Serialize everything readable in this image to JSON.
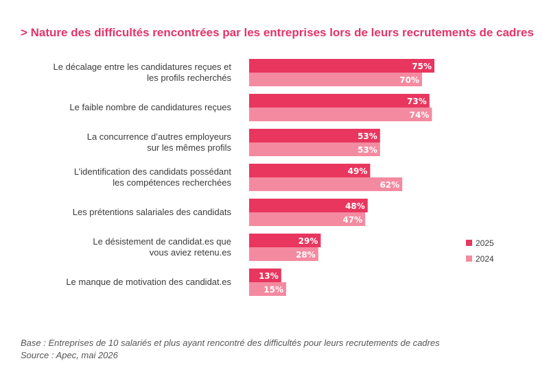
{
  "chart_data": {
    "type": "bar",
    "orientation": "horizontal",
    "title": "> Nature des difficultés rencontrées par les entreprises lors de leurs recrutements de cadres",
    "categories": [
      [
        "Le décalage entre les candidatures reçues et",
        "les profils recherchés"
      ],
      [
        "Le faible nombre de candidatures reçues"
      ],
      [
        "La concurrence d’autres employeurs",
        "sur les mêmes profils"
      ],
      [
        "L’identification des candidats possédant",
        "les compétences recherchées"
      ],
      [
        "Les prétentions salariales des candidats"
      ],
      [
        "Le désistement de candidat.es que",
        "vous aviez retenu.es"
      ],
      [
        "Le manque de motivation des candidat.es"
      ]
    ],
    "series": [
      {
        "name": "2025",
        "color": "#e8365f",
        "values": [
          75,
          73,
          53,
          49,
          48,
          29,
          13
        ],
        "labels": [
          "75%",
          "73%",
          "53%",
          "49%",
          "48%",
          "29%",
          "13%"
        ]
      },
      {
        "name": "2024",
        "color": "#f48aa0",
        "values": [
          70,
          74,
          53,
          62,
          47,
          28,
          15
        ],
        "labels": [
          "70%",
          "74%",
          "53%",
          "62%",
          "47%",
          "28%",
          "15%"
        ]
      }
    ],
    "xlim": [
      0,
      100
    ],
    "grid": false,
    "legend_position": "right"
  },
  "footnotes": {
    "base": "Base : Entreprises de 10 salariés et plus ayant rencontré des difficultés pour leurs recrutements de cadres",
    "source": "Source : Apec, mai 2026"
  }
}
